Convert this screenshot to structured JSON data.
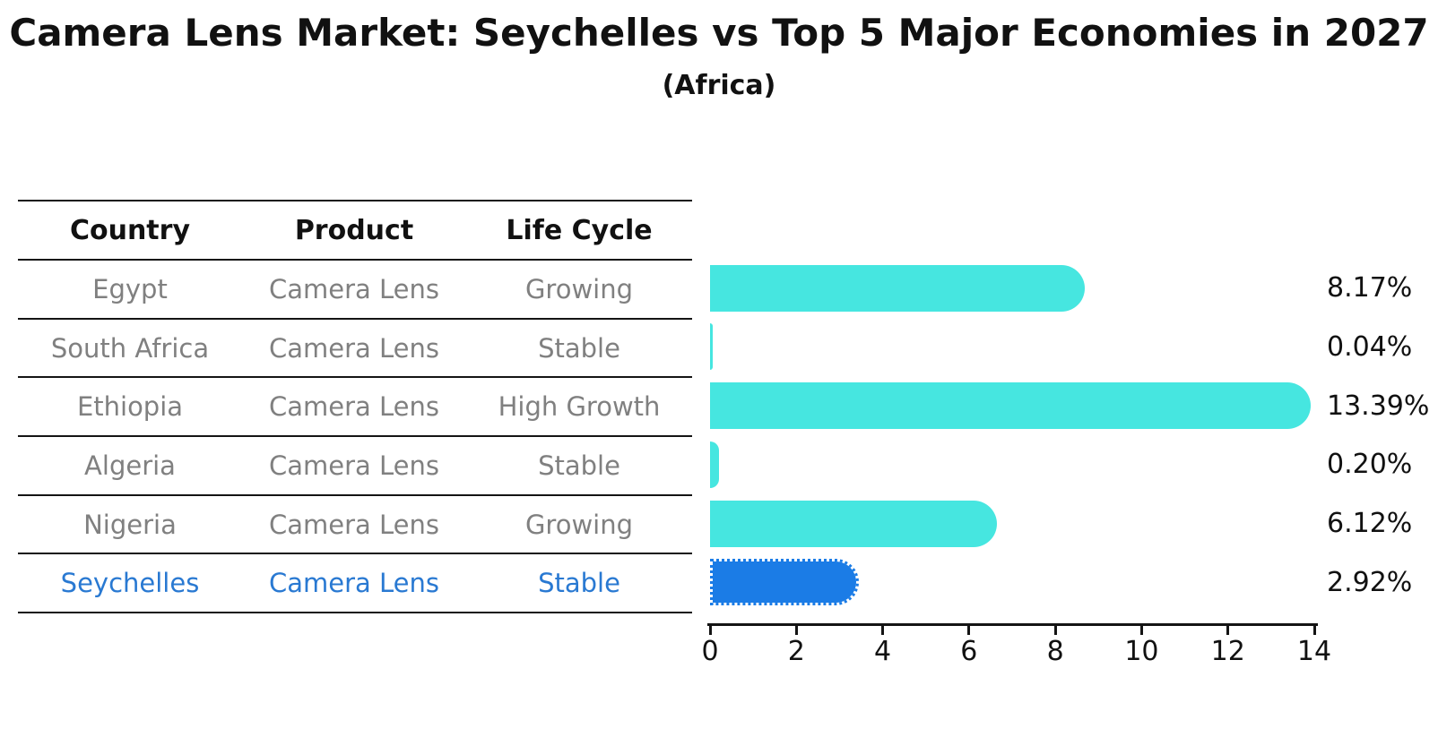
{
  "title": "Camera Lens Market: Seychelles vs Top 5 Major Economies in 2027",
  "subtitle": "(Africa)",
  "table": {
    "headers": [
      "Country",
      "Product",
      "Life Cycle"
    ],
    "rows": [
      {
        "country": "Egypt",
        "product": "Camera Lens",
        "life_cycle": "Growing",
        "highlight": false
      },
      {
        "country": "South Africa",
        "product": "Camera Lens",
        "life_cycle": "Stable",
        "highlight": false
      },
      {
        "country": "Ethiopia",
        "product": "Camera Lens",
        "life_cycle": "High Growth",
        "highlight": false
      },
      {
        "country": "Algeria",
        "product": "Camera Lens",
        "life_cycle": "Stable",
        "highlight": false
      },
      {
        "country": "Nigeria",
        "product": "Camera Lens",
        "life_cycle": "Growing",
        "highlight": false
      },
      {
        "country": "Seychelles",
        "product": "Camera Lens",
        "life_cycle": "Stable",
        "highlight": true
      }
    ]
  },
  "chart_data": {
    "type": "bar",
    "orientation": "horizontal",
    "title": "Camera Lens Market: Seychelles vs Top 5 Major Economies in 2027",
    "subtitle": "(Africa)",
    "categories": [
      "Egypt",
      "South Africa",
      "Ethiopia",
      "Algeria",
      "Nigeria",
      "Seychelles"
    ],
    "values": [
      8.17,
      0.04,
      13.39,
      0.2,
      6.12,
      2.92
    ],
    "value_labels": [
      "8.17%",
      "0.04%",
      "13.39%",
      "0.20%",
      "6.12%",
      "2.92%"
    ],
    "xlabel": "",
    "ylabel": "",
    "xlim": [
      0,
      14
    ],
    "x_ticks": [
      0,
      2,
      4,
      6,
      8,
      10,
      12,
      14
    ],
    "grid": false,
    "legend": false,
    "bar_color": "#46E6E0",
    "highlight_color": "#1B7CE6",
    "highlight_index": 5
  },
  "colors": {
    "bar_cyan": "#46E6E0",
    "bar_blue": "#1B7CE6",
    "highlight_text": "#2979D2",
    "row_text": "#808080",
    "line": "#141414",
    "text": "#111111"
  }
}
